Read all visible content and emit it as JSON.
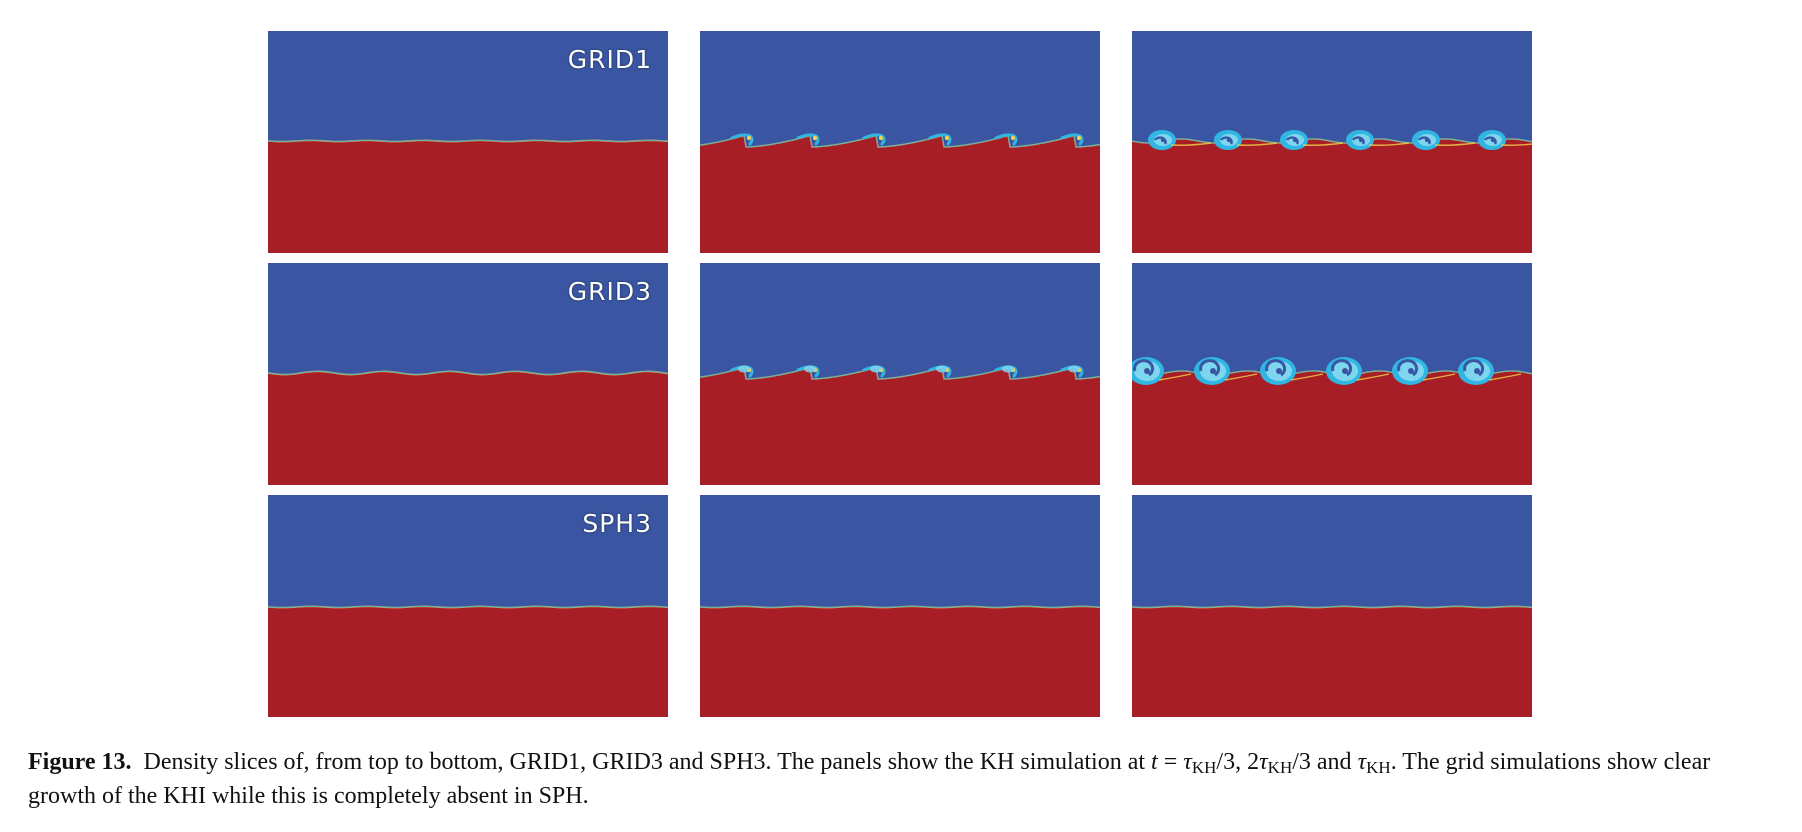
{
  "figure": {
    "panels": [
      {
        "row": 0,
        "col": 0,
        "label": "GRID1",
        "stage": "flat"
      },
      {
        "row": 0,
        "col": 1,
        "label": "",
        "stage": "ripple"
      },
      {
        "row": 0,
        "col": 2,
        "label": "",
        "stage": "roll-small"
      },
      {
        "row": 1,
        "col": 0,
        "label": "GRID3",
        "stage": "flat-wavy"
      },
      {
        "row": 1,
        "col": 1,
        "label": "",
        "stage": "ripple-vortex"
      },
      {
        "row": 1,
        "col": 2,
        "label": "",
        "stage": "roll-large"
      },
      {
        "row": 2,
        "col": 0,
        "label": "SPH3",
        "stage": "flat"
      },
      {
        "row": 2,
        "col": 1,
        "label": "",
        "stage": "flat"
      },
      {
        "row": 2,
        "col": 2,
        "label": "",
        "stage": "flat"
      }
    ],
    "colors": {
      "upper_fluid": "#3a56a2",
      "lower_fluid": "#a81e26",
      "mixing_light": "#7ed6ee",
      "mixing_mid": "#31b6e3",
      "mixing_hot": "#f2d24a"
    }
  },
  "caption": {
    "figure_number": "Figure 13.",
    "text_a": "Density slices of, from top to bottom, GRID1, GRID3 and SPH3. The panels show the KH simulation at",
    "t": "t",
    "eq": "=",
    "tau": "τ",
    "kh": "KH",
    "frac3": "/3, 2",
    "frac3b": "/3 and",
    "period": ".",
    "text_b": "The grid simulations show clear growth of the KHI while this is completely absent in SPH."
  }
}
